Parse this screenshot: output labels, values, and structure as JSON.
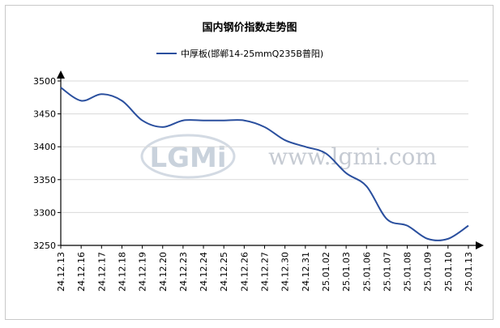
{
  "chart_data": {
    "type": "line",
    "title": "国内钢价指数走势图",
    "xlabel": "",
    "ylabel": "",
    "ylim": [
      3250,
      3500
    ],
    "yticks": [
      3250,
      3300,
      3350,
      3400,
      3450,
      3500
    ],
    "grid": true,
    "legend": "top-center",
    "x": [
      "24.12.13",
      "24.12.16",
      "24.12.17",
      "24.12.18",
      "24.12.19",
      "24.12.20",
      "24.12.23",
      "24.12.24",
      "24.12.25",
      "24.12.26",
      "24.12.27",
      "24.12.30",
      "24.12.31",
      "25.01.02",
      "25.01.03",
      "25.01.06",
      "25.01.07",
      "25.01.08",
      "25.01.09",
      "25.01.10",
      "25.01.13"
    ],
    "series": [
      {
        "name": "中厚板(邯郸14-25mmQ235B普阳)",
        "color": "#2a4f9e",
        "values": [
          3490,
          3470,
          3480,
          3470,
          3440,
          3430,
          3440,
          3440,
          3440,
          3440,
          3430,
          3410,
          3400,
          3390,
          3360,
          3340,
          3290,
          3280,
          3260,
          3260,
          3280
        ]
      }
    ]
  },
  "watermark": {
    "logo_text": "LGMi",
    "url_text": "www.lgmi.com"
  }
}
